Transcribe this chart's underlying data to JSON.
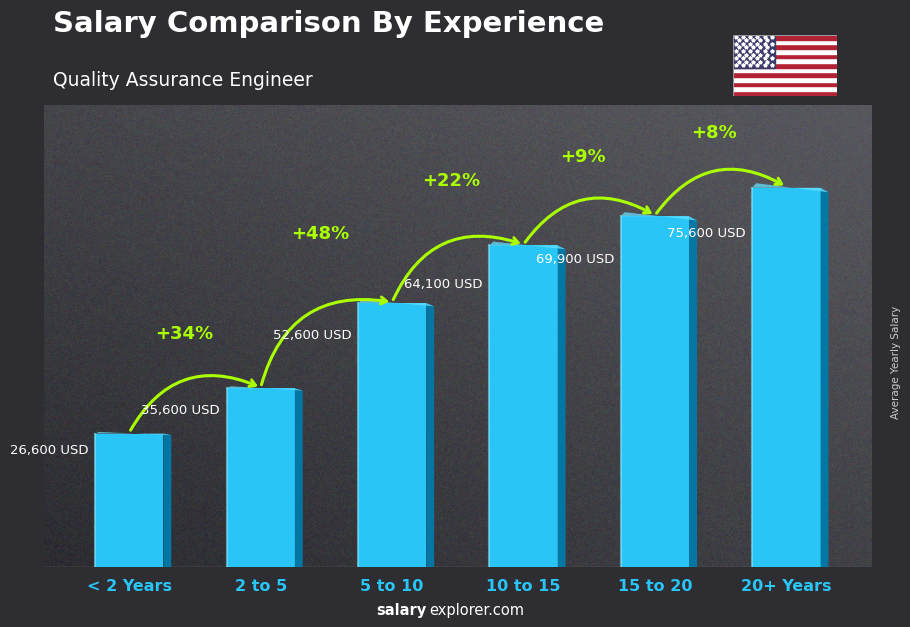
{
  "title": "Salary Comparison By Experience",
  "subtitle": "Quality Assurance Engineer",
  "categories": [
    "< 2 Years",
    "2 to 5",
    "5 to 10",
    "10 to 15",
    "15 to 20",
    "20+ Years"
  ],
  "values": [
    26600,
    35600,
    52600,
    64100,
    69900,
    75600
  ],
  "labels": [
    "26,600 USD",
    "35,600 USD",
    "52,600 USD",
    "64,100 USD",
    "69,900 USD",
    "75,600 USD"
  ],
  "pct_labels": [
    "+34%",
    "+48%",
    "+22%",
    "+9%",
    "+8%"
  ],
  "bar_color": "#29c5f6",
  "bar_face_light": "#55d8ff",
  "bar_face_dark": "#0099cc",
  "bar_side_color": "#007aaa",
  "bar_top_color": "#66e0ff",
  "pct_color": "#aaff00",
  "label_color": "#ffffff",
  "title_color": "#ffffff",
  "subtitle_color": "#ffffff",
  "xlabel_color": "#29c5f6",
  "ylabel_text": "Average Yearly Salary",
  "footer_bold": "salary",
  "footer_normal": "explorer.com",
  "background_color": "#3a3a3a",
  "ylim": [
    0,
    92000
  ],
  "bar_width": 0.52
}
